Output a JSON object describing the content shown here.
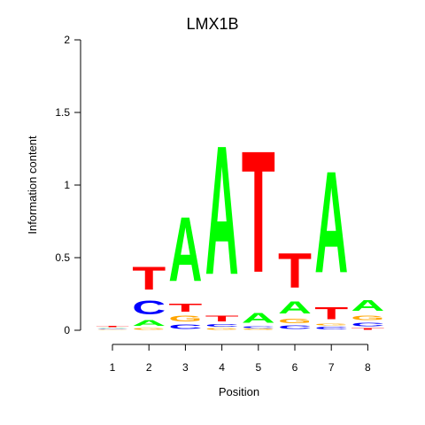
{
  "chart_data": {
    "type": "sequence-logo",
    "title": "LMX1B",
    "xlabel": "Position",
    "ylabel": "Information content",
    "ylim": [
      0,
      2
    ],
    "yticks": [
      "0",
      "0.5",
      "1",
      "1.5",
      "2"
    ],
    "yticks_values": [
      0,
      0.5,
      1,
      1.5,
      2
    ],
    "positions": [
      "1",
      "2",
      "3",
      "4",
      "5",
      "6",
      "7",
      "8"
    ],
    "colors": {
      "A": "#00ff00",
      "C": "#0000ff",
      "G": "#ffa500",
      "T": "#ff0000"
    },
    "columns": [
      [
        {
          "base": "G",
          "height": 0.006
        },
        {
          "base": "C",
          "height": 0.006
        },
        {
          "base": "A",
          "height": 0.006
        },
        {
          "base": "T",
          "height": 0.012
        }
      ],
      [
        {
          "base": "G",
          "height": 0.02
        },
        {
          "base": "A",
          "height": 0.06
        },
        {
          "base": "C",
          "height": 0.15
        },
        {
          "base": "T",
          "height": 0.25
        }
      ],
      [
        {
          "base": "C",
          "height": 0.05
        },
        {
          "base": "G",
          "height": 0.06
        },
        {
          "base": "T",
          "height": 0.09
        },
        {
          "base": "A",
          "height": 0.71
        }
      ],
      [
        {
          "base": "G",
          "height": 0.02
        },
        {
          "base": "C",
          "height": 0.03
        },
        {
          "base": "T",
          "height": 0.06
        },
        {
          "base": "A",
          "height": 1.42
        }
      ],
      [
        {
          "base": "G",
          "height": 0.01
        },
        {
          "base": "C",
          "height": 0.02
        },
        {
          "base": "A",
          "height": 0.11
        },
        {
          "base": "T",
          "height": 1.34
        }
      ],
      [
        {
          "base": "C",
          "height": 0.04
        },
        {
          "base": "G",
          "height": 0.05
        },
        {
          "base": "A",
          "height": 0.13
        },
        {
          "base": "T",
          "height": 0.38
        }
      ],
      [
        {
          "base": "C",
          "height": 0.03
        },
        {
          "base": "G",
          "height": 0.02
        },
        {
          "base": "T",
          "height": 0.13
        },
        {
          "base": "A",
          "height": 1.12
        }
      ],
      [
        {
          "base": "T",
          "height": 0.02
        },
        {
          "base": "C",
          "height": 0.04
        },
        {
          "base": "G",
          "height": 0.05
        },
        {
          "base": "A",
          "height": 0.12
        }
      ]
    ]
  }
}
